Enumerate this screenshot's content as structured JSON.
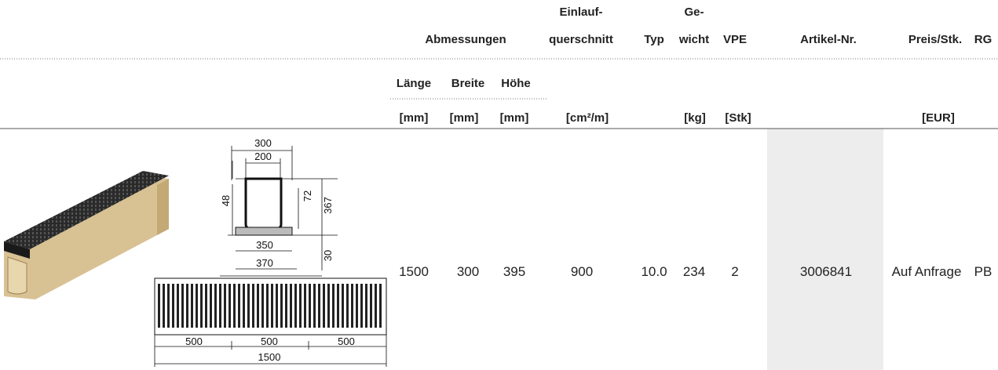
{
  "table": {
    "header": [
      "Abmessungen",
      "Einlauf-",
      "querschnitt",
      "Typ",
      "Ge-",
      "wicht",
      "VPE",
      "Artikel-Nr.",
      "Preis/Stk.",
      "RG"
    ],
    "subheader": [
      "Länge",
      "Breite",
      "Höhe"
    ],
    "units": [
      "[mm]",
      "[mm]",
      "[mm]",
      "[cm²/m]",
      "[kg]",
      "[Stk]",
      "[EUR]"
    ],
    "rows": [
      [
        "1500",
        "300",
        "395",
        "900",
        "10.0",
        "234",
        "2",
        "3006841",
        "Auf Anfrage",
        "PB"
      ]
    ]
  },
  "drawing": {
    "dimensions": [
      "300",
      "200",
      "48",
      "72",
      "367",
      "350",
      "370",
      "30",
      "500",
      "500",
      "500",
      "1500"
    ]
  }
}
